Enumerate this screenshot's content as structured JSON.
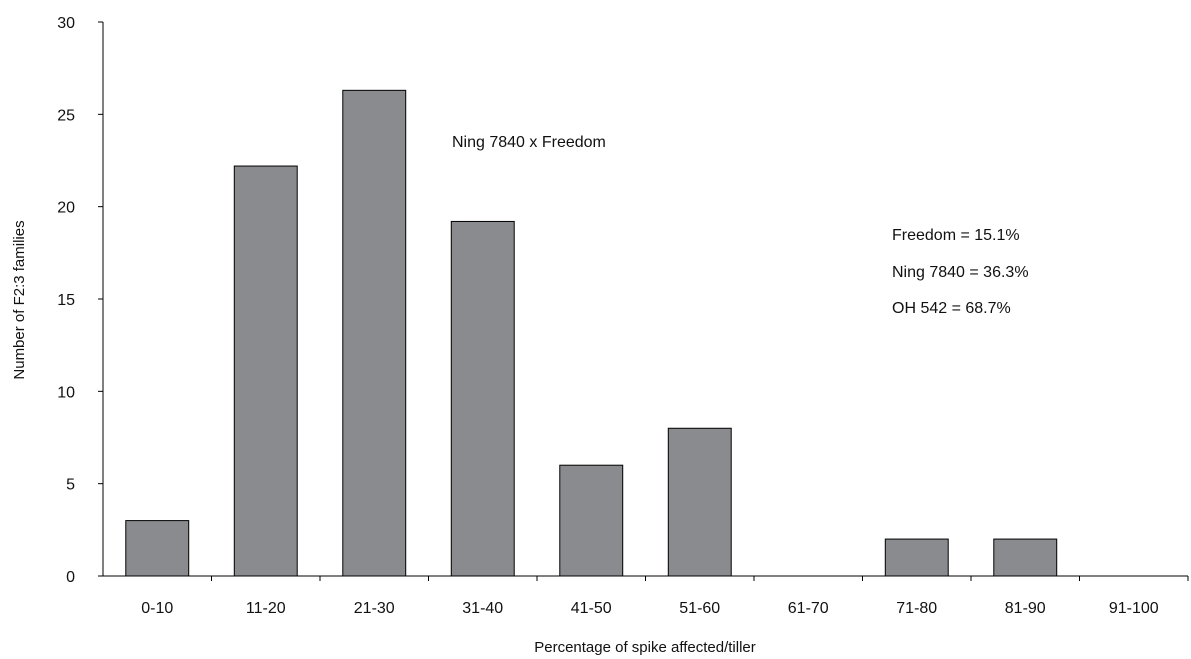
{
  "chart_data": {
    "type": "bar",
    "categories": [
      "0-10",
      "11-20",
      "21-30",
      "31-40",
      "41-50",
      "51-60",
      "61-70",
      "71-80",
      "81-90",
      "91-100"
    ],
    "values": [
      3,
      22.2,
      26.3,
      19.2,
      6,
      8,
      0,
      2,
      2,
      0
    ],
    "title": "",
    "xlabel": "Percentage of spike affected/tiller",
    "ylabel": "Number of F2:3 families",
    "ylim": [
      0,
      30
    ],
    "yticks": [
      0,
      5,
      10,
      15,
      20,
      25,
      30
    ],
    "grid": false,
    "colors": {
      "bar": "#8a8b8f",
      "bar_stroke": "#000000",
      "axis": "#000000"
    },
    "annotations": [
      {
        "text": "Ning 7840 x Freedom"
      },
      {
        "text": "Freedom = 15.1%"
      },
      {
        "text": "Ning 7840 = 36.3%"
      },
      {
        "text": "OH 542 = 68.7%"
      }
    ]
  }
}
